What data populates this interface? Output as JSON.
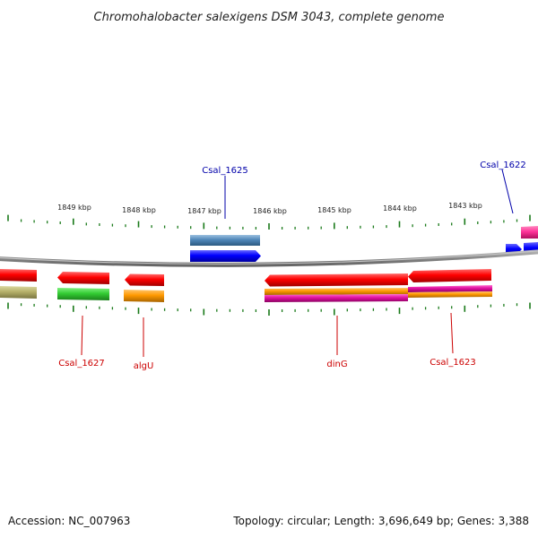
{
  "title": "Chromohalobacter salexigens DSM 3043, complete genome",
  "accession": "Accession: NC_007963",
  "summary": "Topology: circular; Length: 3,696,649 bp; Genes: 3,388",
  "ticks": [
    "1849 kbp",
    "1848 kbp",
    "1847 kbp",
    "1846 kbp",
    "1845 kbp",
    "1844 kbp",
    "1843 kbp"
  ],
  "genes": [
    {
      "name": "Csal_1627",
      "strand": "reverse",
      "color": "#cc0000"
    },
    {
      "name": "algU",
      "strand": "reverse",
      "color": "#cc0000"
    },
    {
      "name": "Csal_1625",
      "strand": "forward",
      "color": "#0000aa"
    },
    {
      "name": "dinG",
      "strand": "reverse",
      "color": "#cc0000"
    },
    {
      "name": "Csal_1623",
      "strand": "reverse",
      "color": "#cc0000"
    },
    {
      "name": "Csal_1622",
      "strand": "forward",
      "color": "#0000aa"
    }
  ],
  "colors": {
    "cds": "#ff0000",
    "forward_gene": "#0000ff",
    "backbone": "#888888",
    "ticks": "#1a7a1a",
    "cog_blue": "#4f86b8",
    "cog_green": "#33cc33",
    "cog_orange": "#ff9900",
    "cog_khaki": "#b5b06a",
    "cog_magenta": "#e010a0",
    "cog_pink": "#ff3399"
  }
}
